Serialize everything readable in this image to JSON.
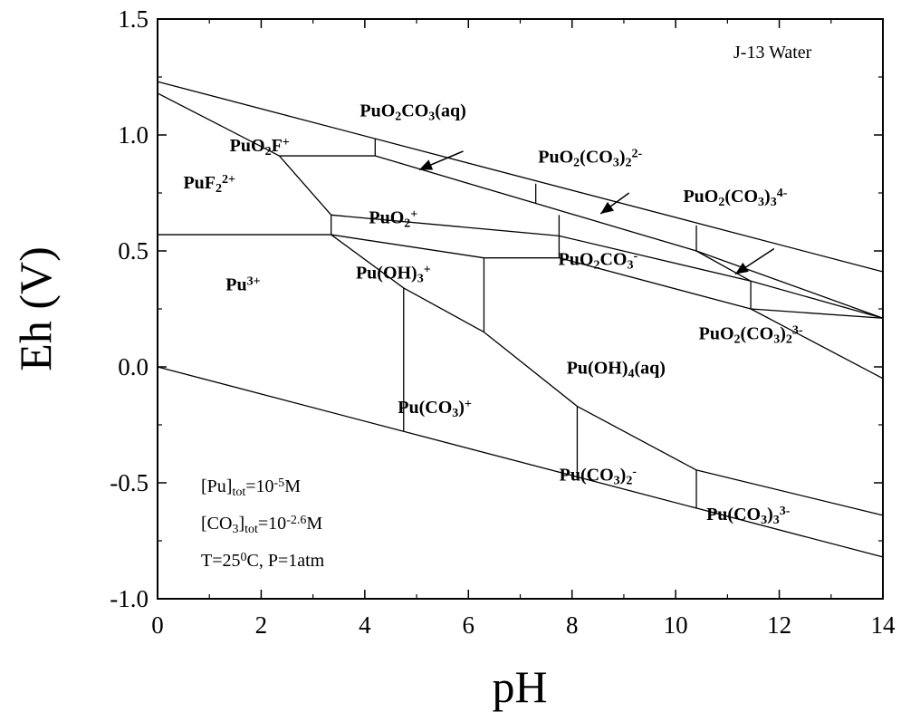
{
  "chart_data": {
    "type": "line",
    "title": "J-13 Water",
    "xlabel": "pH",
    "ylabel": "Eh (V)",
    "xlim": [
      0,
      14
    ],
    "ylim": [
      -1.0,
      1.5
    ],
    "x_ticks": [
      0,
      2,
      4,
      6,
      8,
      10,
      12,
      14
    ],
    "x_tick_labels": [
      "0",
      "2",
      "4",
      "6",
      "8",
      "10",
      "12",
      "14"
    ],
    "y_ticks": [
      -1.0,
      -0.5,
      0.0,
      0.5,
      1.0,
      1.5
    ],
    "y_tick_labels": [
      "-1.0",
      "-0.5",
      "0.0",
      "0.5",
      "1.0",
      "1.5"
    ],
    "grid": false,
    "boundaries": [
      {
        "points": [
          [
            0,
            1.23
          ],
          [
            14,
            0.41
          ]
        ]
      },
      {
        "points": [
          [
            0,
            0.0
          ],
          [
            14,
            -0.82
          ]
        ]
      },
      {
        "points": [
          [
            0,
            1.18
          ],
          [
            2.35,
            0.91
          ]
        ]
      },
      {
        "points": [
          [
            2.35,
            0.91
          ],
          [
            4.2,
            0.91
          ]
        ]
      },
      {
        "points": [
          [
            4.2,
            0.91
          ],
          [
            7.3,
            0.705
          ]
        ]
      },
      {
        "points": [
          [
            7.3,
            0.705
          ],
          [
            10.4,
            0.5
          ]
        ]
      },
      {
        "points": [
          [
            10.4,
            0.5
          ],
          [
            14,
            0.21
          ]
        ]
      },
      {
        "points": [
          [
            4.2,
            0.91
          ],
          [
            4.2,
            0.985
          ]
        ]
      },
      {
        "points": [
          [
            7.3,
            0.705
          ],
          [
            7.3,
            0.79
          ]
        ]
      },
      {
        "points": [
          [
            10.4,
            0.5
          ],
          [
            10.4,
            0.61
          ]
        ]
      },
      {
        "points": [
          [
            2.35,
            0.91
          ],
          [
            3.35,
            0.655
          ]
        ]
      },
      {
        "points": [
          [
            3.35,
            0.655
          ],
          [
            3.35,
            0.57
          ]
        ]
      },
      {
        "points": [
          [
            0,
            0.57
          ],
          [
            3.35,
            0.57
          ]
        ]
      },
      {
        "points": [
          [
            3.35,
            0.655
          ],
          [
            7.75,
            0.655
          ]
        ],
        "curve": [
          [
            3.35,
            0.655
          ],
          [
            7.75,
            0.565
          ]
        ]
      },
      {
        "points": [
          [
            7.75,
            0.565
          ],
          [
            11.45,
            0.37
          ]
        ]
      },
      {
        "points": [
          [
            11.45,
            0.37
          ],
          [
            14,
            0.21
          ]
        ]
      },
      {
        "points": [
          [
            7.75,
            0.655
          ],
          [
            7.75,
            0.47
          ]
        ]
      },
      {
        "points": [
          [
            6.3,
            0.47
          ],
          [
            7.75,
            0.47
          ]
        ]
      },
      {
        "points": [
          [
            3.35,
            0.57
          ],
          [
            6.3,
            0.47
          ]
        ]
      },
      {
        "points": [
          [
            7.75,
            0.47
          ],
          [
            11.45,
            0.25
          ]
        ]
      },
      {
        "points": [
          [
            11.45,
            0.25
          ],
          [
            14,
            0.21
          ]
        ]
      },
      {
        "points": [
          [
            11.45,
            0.37
          ],
          [
            11.45,
            0.25
          ]
        ]
      },
      {
        "points": [
          [
            10.4,
            0.5
          ],
          [
            11.45,
            0.37
          ]
        ]
      },
      {
        "points": [
          [
            11.45,
            0.25
          ],
          [
            14,
            -0.05
          ]
        ]
      },
      {
        "points": [
          [
            14,
            0.21
          ],
          [
            14,
            -0.05
          ]
        ]
      },
      {
        "points": [
          [
            3.35,
            0.57
          ],
          [
            4.75,
            0.34
          ]
        ]
      },
      {
        "points": [
          [
            4.75,
            0.34
          ],
          [
            6.3,
            0.15
          ]
        ]
      },
      {
        "points": [
          [
            6.3,
            0.47
          ],
          [
            6.3,
            0.15
          ]
        ]
      },
      {
        "points": [
          [
            4.75,
            0.34
          ],
          [
            4.75,
            -0.28
          ]
        ]
      },
      {
        "points": [
          [
            6.3,
            0.15
          ],
          [
            8.1,
            -0.17
          ]
        ]
      },
      {
        "points": [
          [
            8.1,
            -0.17
          ],
          [
            8.1,
            -0.48
          ]
        ]
      },
      {
        "points": [
          [
            8.1,
            -0.17
          ],
          [
            10.4,
            -0.445
          ]
        ]
      },
      {
        "points": [
          [
            10.4,
            -0.445
          ],
          [
            10.4,
            -0.61
          ]
        ]
      },
      {
        "points": [
          [
            10.4,
            -0.445
          ],
          [
            14,
            -0.64
          ]
        ]
      }
    ],
    "arrows": [
      {
        "from": [
          5.9,
          0.93
        ],
        "to": [
          5.05,
          0.85
        ]
      },
      {
        "from": [
          9.1,
          0.75
        ],
        "to": [
          8.55,
          0.66
        ]
      },
      {
        "from": [
          11.9,
          0.51
        ],
        "to": [
          11.15,
          0.4
        ]
      }
    ],
    "fields": [
      {
        "base": "PuO",
        "sub": "2",
        "sup": "",
        "rest": "CO",
        "sub2": "3",
        "sup2": "",
        "tail": "(aq)",
        "x": 4.93,
        "y": 1.08
      },
      {
        "base": "PuO",
        "sub": "2",
        "sup": "",
        "rest": "F",
        "sub2": "",
        "sup2": "+",
        "tail": "",
        "x": 1.97,
        "y": 0.93
      },
      {
        "base": "PuO",
        "sub": "2",
        "sup": "",
        "rest": "(CO",
        "sub2": "3",
        "sup2": "",
        "tail": ")",
        "tsub": "2",
        "tsup": "2-",
        "x": 8.35,
        "y": 0.88
      },
      {
        "base": "PuF",
        "sub": "2",
        "sup": "2+",
        "rest": "",
        "sub2": "",
        "sup2": "",
        "tail": "",
        "x": 1.0,
        "y": 0.77
      },
      {
        "base": "PuO",
        "sub": "2",
        "sup": "",
        "rest": "(CO",
        "sub2": "3",
        "sup2": "",
        "tail": ")",
        "tsub": "3",
        "tsup": "4-",
        "x": 11.15,
        "y": 0.71
      },
      {
        "base": "PuO",
        "sub": "2",
        "sup": "+",
        "rest": "",
        "sub2": "",
        "sup2": "",
        "tail": "",
        "x": 4.55,
        "y": 0.62
      },
      {
        "base": "PuO",
        "sub": "2",
        "sup": "",
        "rest": "CO",
        "sub2": "3",
        "sup2": "-",
        "tail": "",
        "x": 8.5,
        "y": 0.44
      },
      {
        "base": "Pu(OH)",
        "sub": "3",
        "sup": "+",
        "rest": "",
        "sub2": "",
        "sup2": "",
        "tail": "",
        "x": 4.55,
        "y": 0.38
      },
      {
        "base": "Pu",
        "sub": "",
        "sup": "3+",
        "rest": "",
        "sub2": "",
        "sup2": "",
        "tail": "",
        "x": 1.65,
        "y": 0.33
      },
      {
        "base": "PuO",
        "sub": "2",
        "sup": "",
        "rest": "(CO",
        "sub2": "3",
        "sup2": "",
        "tail": ")",
        "tsub": "2",
        "tsup": "3-",
        "x": 11.45,
        "y": 0.12
      },
      {
        "base": "Pu(OH)",
        "sub": "4",
        "sup": "",
        "rest": "",
        "sub2": "",
        "sup2": "",
        "tail": "(aq)",
        "x": 8.85,
        "y": -0.03
      },
      {
        "base": "Pu(CO",
        "sub": "3",
        "sup": "",
        "rest": ")",
        "sub2": "",
        "sup2": "+",
        "tail": "",
        "x": 5.35,
        "y": -0.2
      },
      {
        "base": "Pu(CO",
        "sub": "3",
        "sup": "",
        "rest": ")",
        "sub2": "2",
        "sup2": "-",
        "tail": "",
        "x": 8.5,
        "y": -0.49
      },
      {
        "base": "Pu(CO",
        "sub": "3",
        "sup": "",
        "rest": ")",
        "sub2": "3",
        "sup2": "3-",
        "tail": "",
        "x": 11.4,
        "y": -0.66
      }
    ],
    "annotations": {
      "note_title": "J-13 Water",
      "conditions": [
        {
          "base": "[Pu]",
          "sub": "tot",
          "mid": "=10",
          "sup": "-5",
          "tail": "M"
        },
        {
          "base": "[CO",
          "sub": "3",
          "mid": "]",
          "sub2": "tot",
          "mid2": "=10",
          "sup": "-2.6",
          "tail": "M"
        },
        {
          "base": "T=25",
          "sup": "0",
          "tail": "C, P=1atm"
        }
      ]
    }
  }
}
